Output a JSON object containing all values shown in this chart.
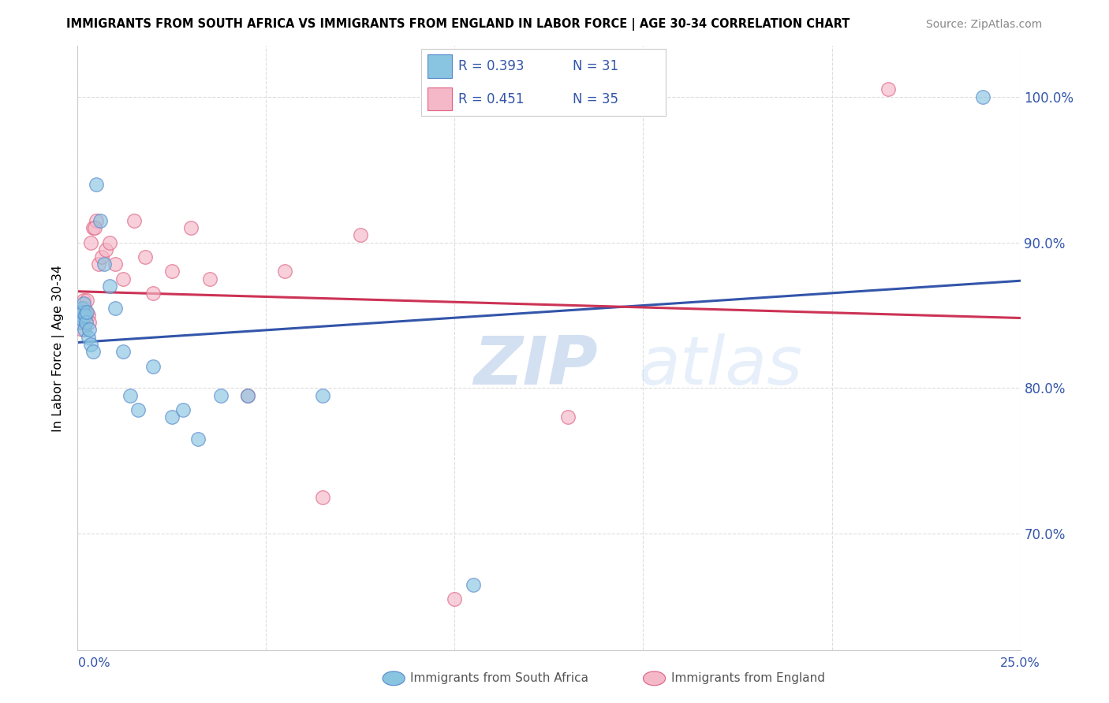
{
  "title": "IMMIGRANTS FROM SOUTH AFRICA VS IMMIGRANTS FROM ENGLAND IN LABOR FORCE | AGE 30-34 CORRELATION CHART",
  "source": "Source: ZipAtlas.com",
  "ylabel": "In Labor Force | Age 30-34",
  "xlim": [
    0.0,
    25.0
  ],
  "ylim": [
    62.0,
    103.5
  ],
  "ytick_vals": [
    70.0,
    80.0,
    90.0,
    100.0
  ],
  "ytick_labels": [
    "70.0%",
    "80.0%",
    "90.0%",
    "100.0%"
  ],
  "blue_scatter": "#89c4e1",
  "pink_scatter": "#f4b8c8",
  "blue_edge": "#5588cc",
  "pink_edge": "#e06080",
  "trend_blue": "#3355aa",
  "trend_pink": "#cc3355",
  "watermark_color": "#c8daf0",
  "south_africa_x": [
    0.05,
    0.08,
    0.1,
    0.12,
    0.14,
    0.16,
    0.18,
    0.2,
    0.22,
    0.25,
    0.28,
    0.3,
    0.35,
    0.4,
    0.5,
    0.6,
    0.7,
    0.85,
    1.0,
    1.2,
    1.4,
    1.6,
    2.0,
    2.5,
    2.8,
    3.2,
    3.8,
    4.5,
    6.5,
    10.5,
    24.0
  ],
  "south_africa_y": [
    84.5,
    85.0,
    84.8,
    85.5,
    85.2,
    85.8,
    84.0,
    85.0,
    84.5,
    85.2,
    83.5,
    84.0,
    83.0,
    82.5,
    94.0,
    91.5,
    88.5,
    87.0,
    85.5,
    82.5,
    79.5,
    78.5,
    81.5,
    78.0,
    78.5,
    76.5,
    79.5,
    79.5,
    79.5,
    66.5,
    100.0
  ],
  "england_x": [
    0.05,
    0.07,
    0.09,
    0.12,
    0.14,
    0.16,
    0.18,
    0.2,
    0.22,
    0.25,
    0.28,
    0.3,
    0.35,
    0.4,
    0.5,
    0.55,
    0.65,
    0.75,
    0.85,
    1.0,
    1.2,
    1.5,
    1.8,
    2.0,
    2.5,
    3.0,
    3.5,
    4.5,
    5.5,
    6.5,
    7.5,
    10.0,
    13.0,
    21.5,
    0.45
  ],
  "england_y": [
    84.5,
    85.0,
    85.5,
    84.0,
    85.0,
    86.0,
    85.5,
    84.8,
    85.2,
    86.0,
    85.0,
    84.5,
    90.0,
    91.0,
    91.5,
    88.5,
    89.0,
    89.5,
    90.0,
    88.5,
    87.5,
    91.5,
    89.0,
    86.5,
    88.0,
    91.0,
    87.5,
    79.5,
    88.0,
    72.5,
    90.5,
    65.5,
    78.0,
    100.5,
    91.0
  ]
}
